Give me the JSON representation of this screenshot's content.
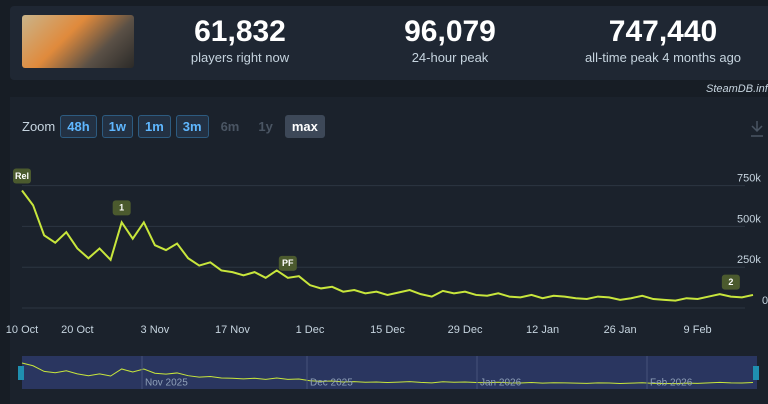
{
  "header": {
    "stats": [
      {
        "value": "61,832",
        "label": "players right now"
      },
      {
        "value": "96,079",
        "label": "24-hour peak"
      },
      {
        "value": "747,440",
        "label": "all-time peak 4 months ago"
      }
    ],
    "source": "SteamDB.info"
  },
  "zoom": {
    "label": "Zoom",
    "options": [
      "48h",
      "1w",
      "1m",
      "3m",
      "6m",
      "1y",
      "max"
    ]
  },
  "chart_data": {
    "type": "line",
    "color": "#c8e63c",
    "x": [
      "10 Oct",
      null,
      null,
      null,
      null,
      "20 Oct",
      null,
      null,
      null,
      null,
      null,
      null,
      "3 Nov",
      null,
      null,
      null,
      null,
      null,
      null,
      "17 Nov",
      null,
      null,
      null,
      null,
      null,
      null,
      "1 Dec",
      null,
      null,
      null,
      null,
      null,
      null,
      "15 Dec",
      null,
      null,
      null,
      null,
      null,
      null,
      "29 Dec",
      null,
      null,
      null,
      null,
      null,
      null,
      "12 Jan",
      null,
      null,
      null,
      null,
      null,
      null,
      "26 Jan",
      null,
      null,
      null,
      null,
      null,
      null,
      "9 Feb",
      null,
      null,
      null,
      null,
      null
    ],
    "values": [
      720000,
      630000,
      445000,
      400000,
      465000,
      365000,
      305000,
      365000,
      295000,
      525000,
      425000,
      525000,
      385000,
      355000,
      395000,
      305000,
      260000,
      280000,
      230000,
      220000,
      200000,
      220000,
      185000,
      230000,
      185000,
      195000,
      140000,
      120000,
      130000,
      100000,
      110000,
      90000,
      100000,
      80000,
      95000,
      110000,
      85000,
      70000,
      105000,
      90000,
      100000,
      80000,
      75000,
      90000,
      70000,
      65000,
      80000,
      60000,
      75000,
      70000,
      60000,
      55000,
      70000,
      65000,
      50000,
      60000,
      75000,
      55000,
      50000,
      45000,
      60000,
      55000,
      70000,
      85000,
      70000,
      65000,
      80000
    ],
    "ylim": [
      0,
      950000
    ],
    "yticks": [
      0,
      {
        "value": 250000,
        "label": "250k"
      },
      {
        "value": 500000,
        "label": "500k"
      },
      {
        "value": 750000,
        "label": "750k"
      }
    ],
    "grid": true,
    "annotations": [
      "Rel",
      "1",
      "PF",
      "2"
    ],
    "navigator": [
      "Nov 2025",
      "Dec 2025",
      "Jan 2026",
      "Feb 2026"
    ]
  }
}
